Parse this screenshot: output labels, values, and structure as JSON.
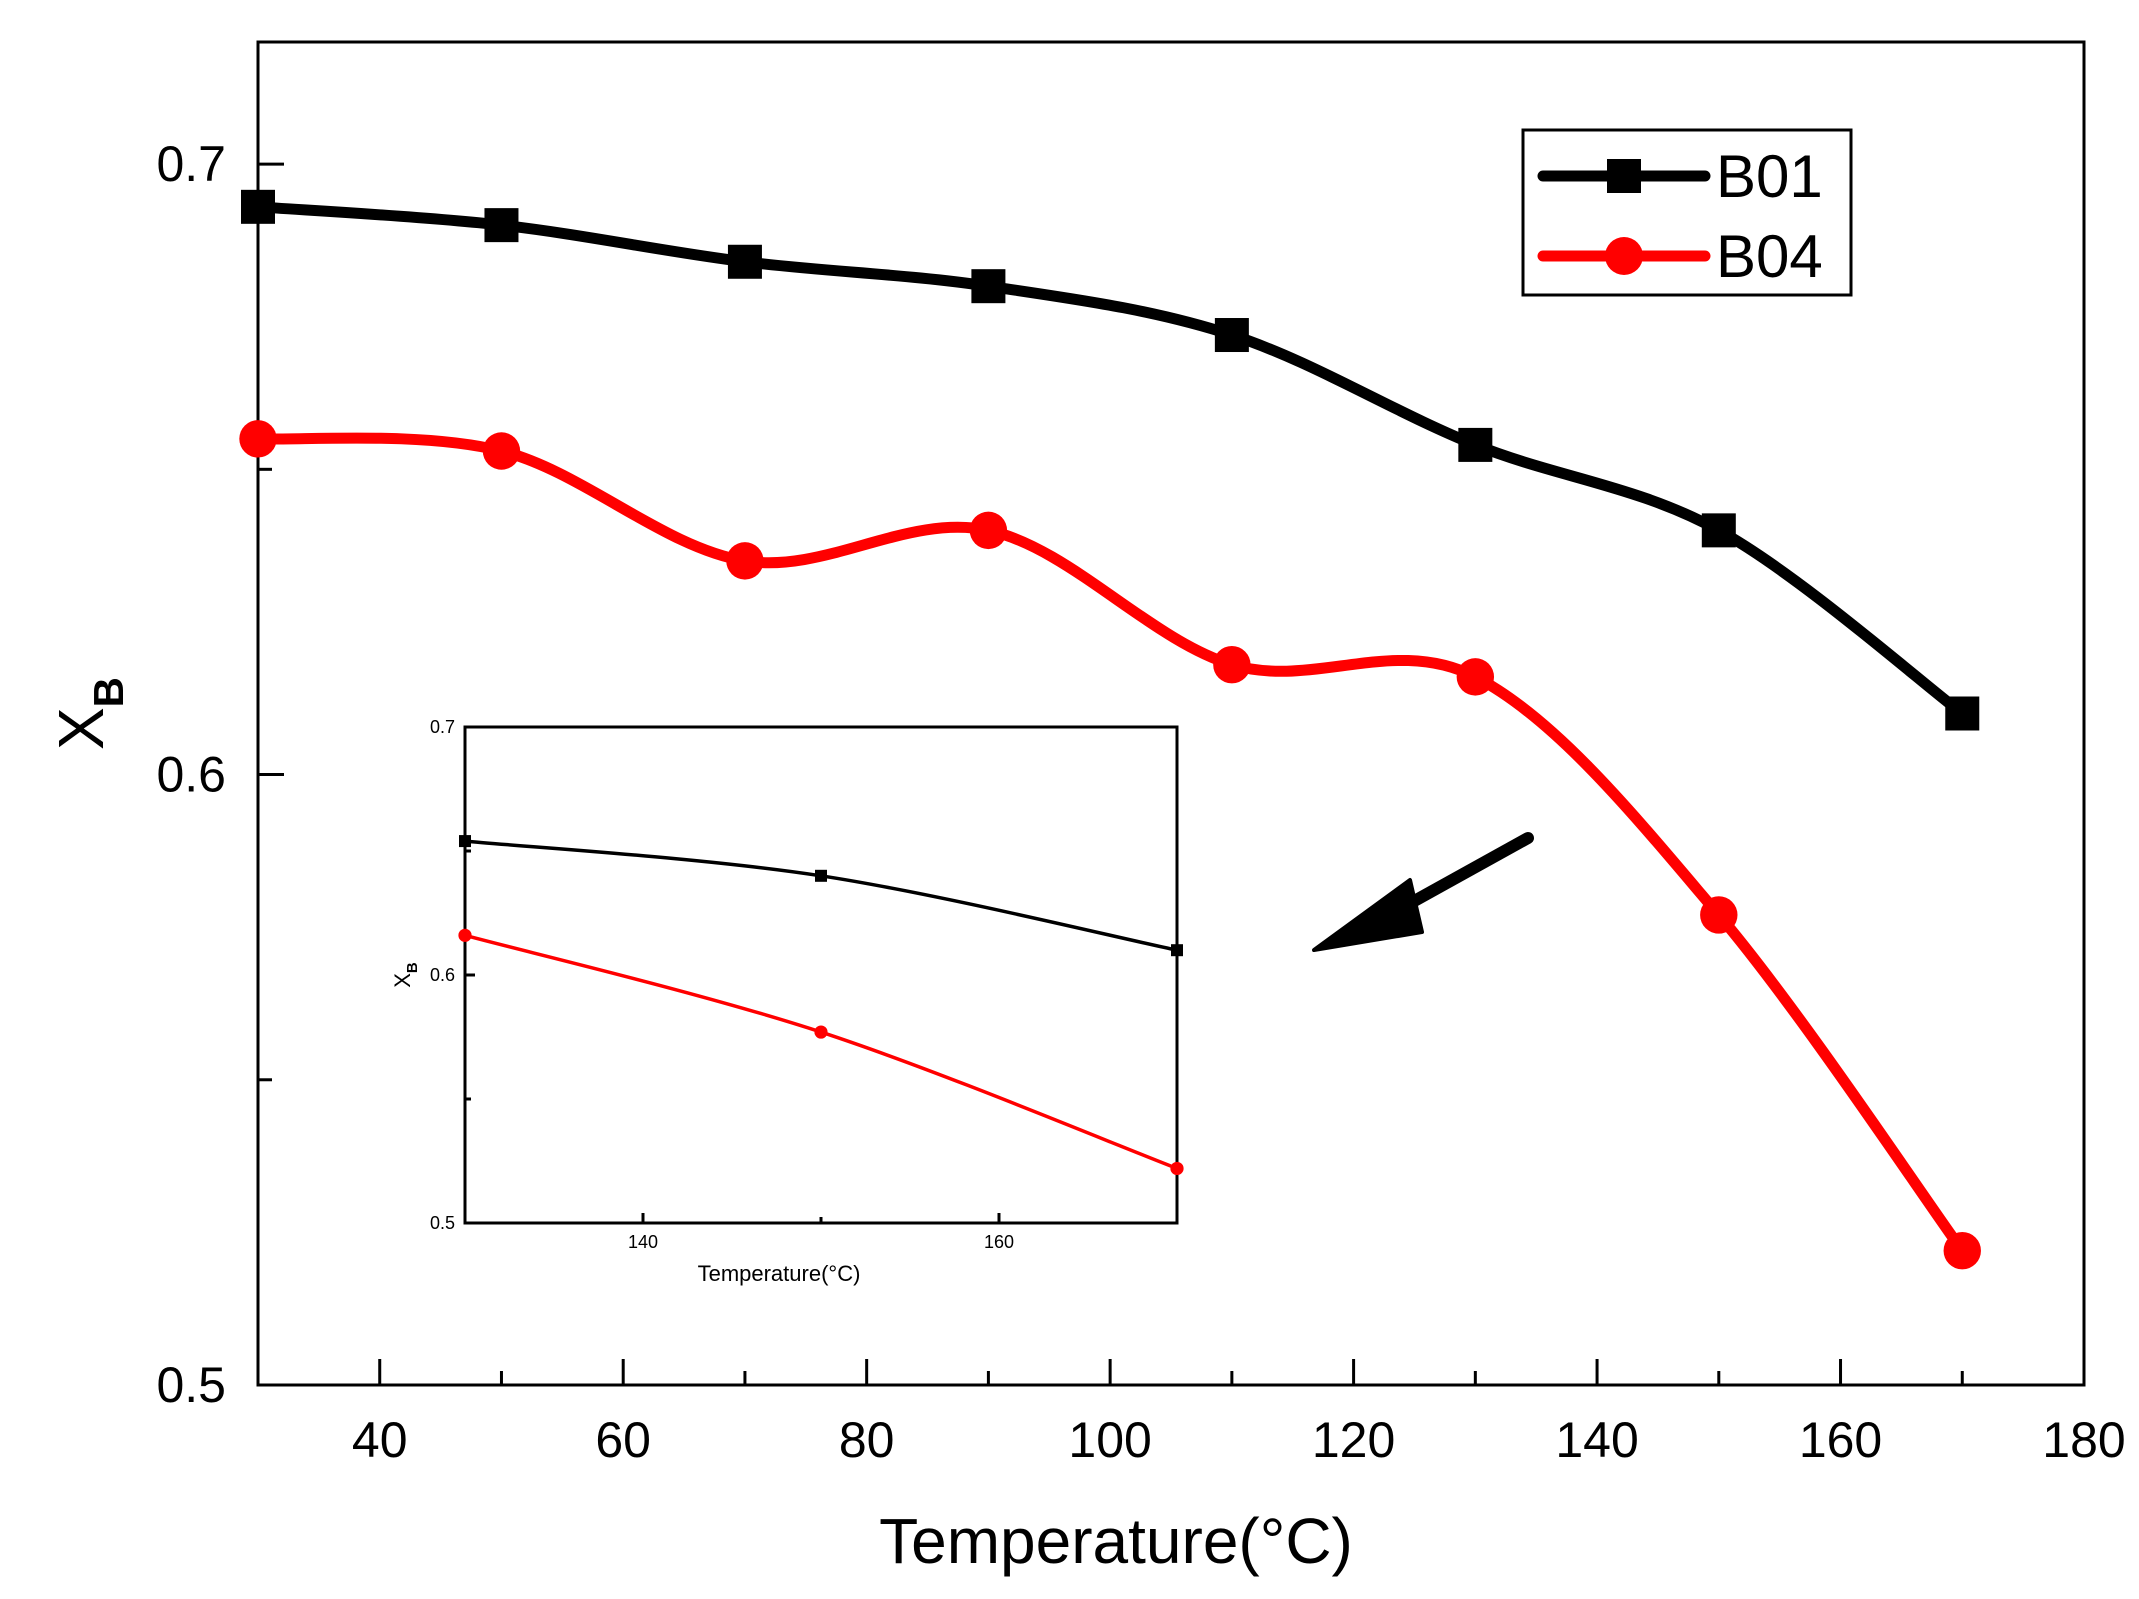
{
  "chart_data": [
    {
      "type": "line",
      "role": "main",
      "title": "",
      "xlabel": "Temperature(°C)",
      "ylabel": "X",
      "ylabel_sub": "B",
      "xlim": [
        30,
        180
      ],
      "ylim": [
        0.5,
        0.72
      ],
      "xticks": [
        40,
        60,
        80,
        100,
        120,
        140,
        160,
        180
      ],
      "yticks": [
        0.5,
        0.6,
        0.7
      ],
      "ytick_labels": [
        "0.5",
        "0.6",
        "0.7"
      ],
      "legend_position": "top-right",
      "series": [
        {
          "name": "B01",
          "color": "#000000",
          "marker": "square",
          "x": [
            30,
            50,
            70,
            90,
            110,
            130,
            150,
            170
          ],
          "values": [
            0.693,
            0.69,
            0.684,
            0.68,
            0.672,
            0.654,
            0.64,
            0.61
          ]
        },
        {
          "name": "B04",
          "color": "#ff0000",
          "marker": "circle",
          "x": [
            30,
            50,
            70,
            90,
            110,
            130,
            150,
            170
          ],
          "values": [
            0.655,
            0.653,
            0.635,
            0.64,
            0.618,
            0.616,
            0.577,
            0.522
          ]
        }
      ]
    },
    {
      "type": "line",
      "role": "inset",
      "title": "",
      "xlabel": "Temperature(°C)",
      "ylabel": "X",
      "ylabel_sub": "B",
      "xlim": [
        130,
        170
      ],
      "ylim": [
        0.5,
        0.7
      ],
      "xticks": [
        140,
        160
      ],
      "yticks": [
        0.5,
        0.6,
        0.7
      ],
      "ytick_labels": [
        "0.5",
        "0.6",
        "0.7"
      ],
      "series": [
        {
          "name": "B01",
          "color": "#000000",
          "marker": "square",
          "x": [
            130,
            150,
            170
          ],
          "values": [
            0.654,
            0.64,
            0.61
          ]
        },
        {
          "name": "B04",
          "color": "#ff0000",
          "marker": "circle",
          "x": [
            130,
            150,
            170
          ],
          "values": [
            0.616,
            0.577,
            0.522
          ]
        }
      ]
    }
  ]
}
